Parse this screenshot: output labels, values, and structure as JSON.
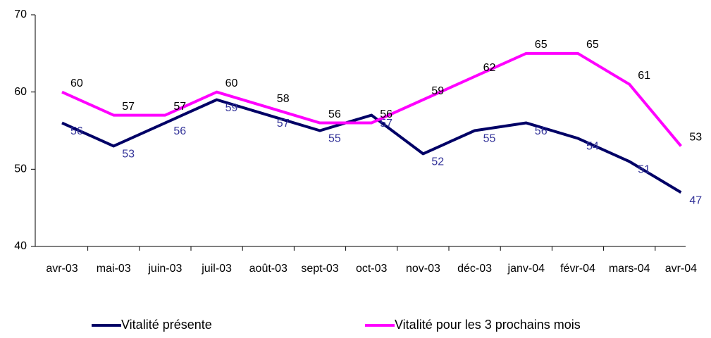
{
  "chart_data": {
    "type": "line",
    "categories": [
      "avr-03",
      "mai-03",
      "juin-03",
      "juil-03",
      "août-03",
      "sept-03",
      "oct-03",
      "nov-03",
      "déc-03",
      "janv-04",
      "févr-04",
      "mars-04",
      "avr-04"
    ],
    "series": [
      {
        "name": "Vitalité présente",
        "color": "#000066",
        "label_color": "#333399",
        "values": [
          56,
          53,
          56,
          59,
          57,
          55,
          57,
          52,
          55,
          56,
          54,
          51,
          47
        ]
      },
      {
        "name": "Vitalité pour les 3 prochains mois",
        "color": "#ff00ff",
        "label_color": "#000000",
        "values": [
          60,
          57,
          57,
          60,
          58,
          56,
          56,
          59,
          62,
          65,
          65,
          61,
          53
        ]
      }
    ],
    "ylim": [
      40,
      70
    ],
    "yticks": [
      40,
      50,
      60,
      70
    ],
    "grid": false,
    "legend": "bottom"
  }
}
